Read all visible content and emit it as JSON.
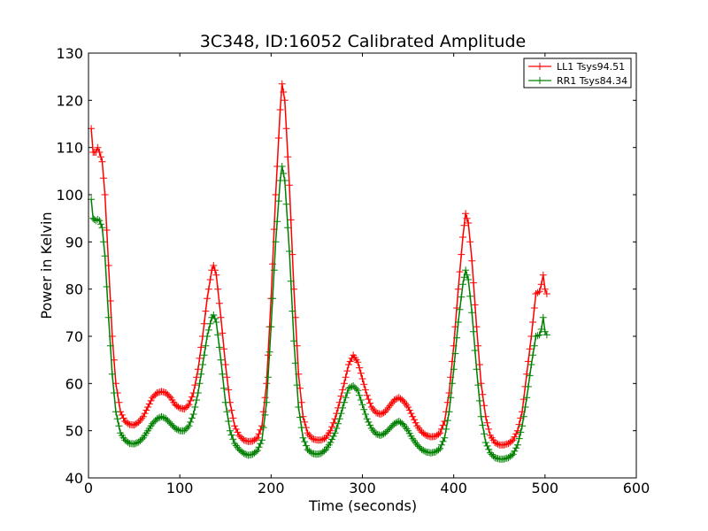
{
  "chart_data": {
    "type": "line",
    "title": "3C348, ID:16052 Calibrated Amplitude",
    "xlabel": "Time (seconds)",
    "ylabel": "Power in Kelvin",
    "xlim": [
      0,
      600
    ],
    "ylim": [
      40,
      130
    ],
    "xticks": [
      0,
      100,
      200,
      300,
      400,
      500,
      600
    ],
    "yticks": [
      40,
      50,
      60,
      70,
      80,
      90,
      100,
      110,
      120,
      130
    ],
    "grid": false,
    "legend_position": "top-right",
    "marker": "+",
    "series": [
      {
        "name": "LL1 Tsys94.51",
        "color": "#ff0000",
        "points": [
          [
            3,
            114
          ],
          [
            5,
            109
          ],
          [
            8,
            109
          ],
          [
            10,
            110
          ],
          [
            12,
            109
          ],
          [
            15,
            107
          ],
          [
            18,
            100
          ],
          [
            22,
            85
          ],
          [
            26,
            70
          ],
          [
            30,
            60
          ],
          [
            35,
            54
          ],
          [
            40,
            52
          ],
          [
            45,
            51.3
          ],
          [
            50,
            51.2
          ],
          [
            55,
            51.8
          ],
          [
            60,
            53
          ],
          [
            65,
            55
          ],
          [
            70,
            57
          ],
          [
            75,
            58
          ],
          [
            80,
            58.3
          ],
          [
            85,
            58
          ],
          [
            90,
            57
          ],
          [
            95,
            55.5
          ],
          [
            100,
            54.8
          ],
          [
            105,
            54.6
          ],
          [
            110,
            55.5
          ],
          [
            115,
            58
          ],
          [
            120,
            63
          ],
          [
            125,
            70
          ],
          [
            130,
            78
          ],
          [
            135,
            84
          ],
          [
            137,
            85
          ],
          [
            140,
            83
          ],
          [
            145,
            74
          ],
          [
            150,
            64
          ],
          [
            155,
            56
          ],
          [
            160,
            51
          ],
          [
            165,
            49
          ],
          [
            170,
            48
          ],
          [
            175,
            47.7
          ],
          [
            180,
            47.8
          ],
          [
            185,
            48.5
          ],
          [
            190,
            51
          ],
          [
            195,
            60
          ],
          [
            200,
            78
          ],
          [
            205,
            100
          ],
          [
            210,
            118
          ],
          [
            212,
            123.5
          ],
          [
            215,
            120
          ],
          [
            220,
            102
          ],
          [
            225,
            80
          ],
          [
            230,
            62
          ],
          [
            235,
            53
          ],
          [
            240,
            49.5
          ],
          [
            245,
            48.3
          ],
          [
            250,
            48
          ],
          [
            255,
            48
          ],
          [
            260,
            48.5
          ],
          [
            265,
            50
          ],
          [
            270,
            52.5
          ],
          [
            275,
            56
          ],
          [
            280,
            60
          ],
          [
            285,
            64
          ],
          [
            290,
            66
          ],
          [
            295,
            64.5
          ],
          [
            300,
            61
          ],
          [
            305,
            57.5
          ],
          [
            310,
            55
          ],
          [
            315,
            53.8
          ],
          [
            320,
            53.5
          ],
          [
            325,
            54
          ],
          [
            330,
            55.3
          ],
          [
            335,
            56.5
          ],
          [
            340,
            57
          ],
          [
            345,
            56.3
          ],
          [
            350,
            55
          ],
          [
            355,
            53
          ],
          [
            360,
            51
          ],
          [
            365,
            49.7
          ],
          [
            370,
            49
          ],
          [
            375,
            48.7
          ],
          [
            380,
            48.8
          ],
          [
            385,
            49.5
          ],
          [
            390,
            52
          ],
          [
            395,
            58
          ],
          [
            400,
            68
          ],
          [
            405,
            80
          ],
          [
            410,
            91
          ],
          [
            413,
            96
          ],
          [
            416,
            94
          ],
          [
            420,
            86
          ],
          [
            425,
            72
          ],
          [
            430,
            60
          ],
          [
            435,
            53
          ],
          [
            440,
            49
          ],
          [
            445,
            47.5
          ],
          [
            450,
            47
          ],
          [
            455,
            47
          ],
          [
            460,
            47.3
          ],
          [
            465,
            48
          ],
          [
            470,
            50
          ],
          [
            475,
            54
          ],
          [
            480,
            62
          ],
          [
            485,
            70
          ],
          [
            490,
            79
          ],
          [
            494,
            79.5
          ],
          [
            496,
            81
          ],
          [
            498,
            83
          ],
          [
            500,
            80
          ],
          [
            502,
            79
          ]
        ]
      },
      {
        "name": "RR1 Tsys84.34",
        "color": "#008000",
        "points": [
          [
            3,
            99
          ],
          [
            5,
            95
          ],
          [
            8,
            94.5
          ],
          [
            10,
            94.8
          ],
          [
            12,
            94.5
          ],
          [
            15,
            93
          ],
          [
            18,
            87
          ],
          [
            22,
            74
          ],
          [
            26,
            62
          ],
          [
            30,
            54
          ],
          [
            35,
            49.5
          ],
          [
            40,
            48
          ],
          [
            45,
            47.3
          ],
          [
            50,
            47.2
          ],
          [
            55,
            47.6
          ],
          [
            60,
            48.5
          ],
          [
            65,
            50
          ],
          [
            70,
            51.5
          ],
          [
            75,
            52.5
          ],
          [
            80,
            53
          ],
          [
            85,
            52.5
          ],
          [
            90,
            51.5
          ],
          [
            95,
            50.5
          ],
          [
            100,
            50
          ],
          [
            105,
            50
          ],
          [
            110,
            51
          ],
          [
            115,
            53.5
          ],
          [
            120,
            58
          ],
          [
            125,
            64
          ],
          [
            130,
            70
          ],
          [
            135,
            74
          ],
          [
            137,
            74.5
          ],
          [
            140,
            73
          ],
          [
            145,
            65
          ],
          [
            150,
            56
          ],
          [
            155,
            50
          ],
          [
            160,
            47.3
          ],
          [
            165,
            46
          ],
          [
            170,
            45.2
          ],
          [
            175,
            44.8
          ],
          [
            180,
            45
          ],
          [
            185,
            45.8
          ],
          [
            190,
            48
          ],
          [
            195,
            56
          ],
          [
            200,
            72
          ],
          [
            205,
            90
          ],
          [
            210,
            103
          ],
          [
            212,
            106
          ],
          [
            215,
            103
          ],
          [
            220,
            88
          ],
          [
            225,
            69
          ],
          [
            230,
            55
          ],
          [
            235,
            48.5
          ],
          [
            240,
            46
          ],
          [
            245,
            45.2
          ],
          [
            250,
            45
          ],
          [
            255,
            45.2
          ],
          [
            260,
            46
          ],
          [
            265,
            47.5
          ],
          [
            270,
            49.5
          ],
          [
            275,
            52.5
          ],
          [
            280,
            56
          ],
          [
            285,
            59
          ],
          [
            290,
            59.5
          ],
          [
            295,
            58.5
          ],
          [
            300,
            55.5
          ],
          [
            305,
            52.5
          ],
          [
            310,
            50.5
          ],
          [
            315,
            49.3
          ],
          [
            320,
            49
          ],
          [
            325,
            49.5
          ],
          [
            330,
            50.5
          ],
          [
            335,
            51.5
          ],
          [
            340,
            52
          ],
          [
            345,
            51.3
          ],
          [
            350,
            50
          ],
          [
            355,
            48.3
          ],
          [
            360,
            47
          ],
          [
            365,
            46
          ],
          [
            370,
            45.5
          ],
          [
            375,
            45.3
          ],
          [
            380,
            45.5
          ],
          [
            385,
            46.2
          ],
          [
            390,
            48.5
          ],
          [
            395,
            54
          ],
          [
            400,
            63
          ],
          [
            405,
            73
          ],
          [
            410,
            81
          ],
          [
            413,
            84
          ],
          [
            416,
            82
          ],
          [
            420,
            75
          ],
          [
            425,
            63
          ],
          [
            430,
            53
          ],
          [
            435,
            47.5
          ],
          [
            440,
            45.3
          ],
          [
            445,
            44.3
          ],
          [
            450,
            44
          ],
          [
            455,
            44
          ],
          [
            460,
            44.3
          ],
          [
            465,
            45
          ],
          [
            470,
            47
          ],
          [
            475,
            51
          ],
          [
            480,
            57
          ],
          [
            485,
            64
          ],
          [
            490,
            70
          ],
          [
            494,
            70.3
          ],
          [
            496,
            71.5
          ],
          [
            498,
            74
          ],
          [
            500,
            71
          ],
          [
            502,
            70.3
          ]
        ]
      }
    ]
  }
}
